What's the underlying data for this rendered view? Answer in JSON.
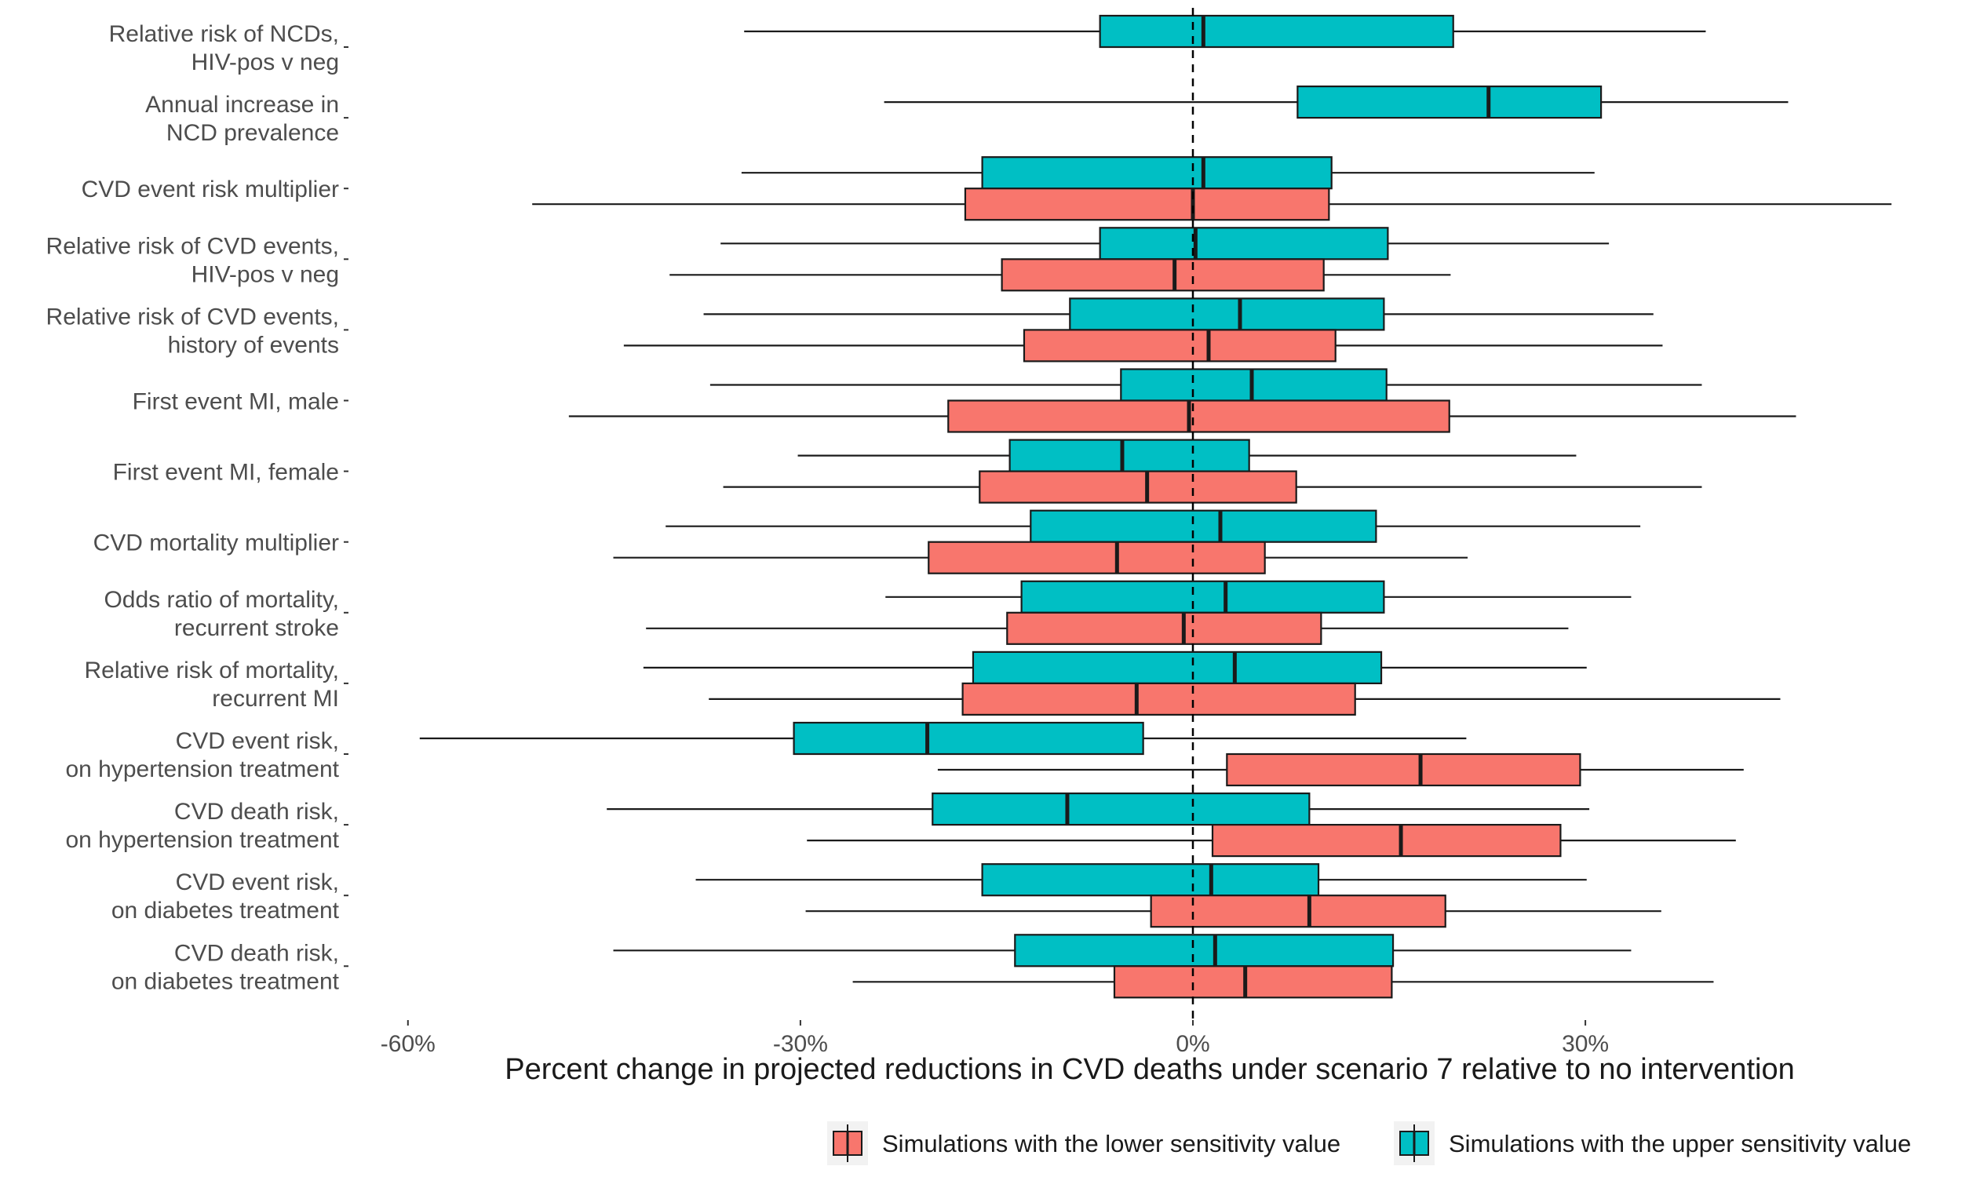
{
  "chart_data": {
    "type": "boxplot",
    "orientation": "horizontal",
    "xlabel": "Percent change in projected reductions in CVD deaths under scenario 7 relative to no intervention",
    "xlim": [
      -66,
      57
    ],
    "xticks": [
      -60,
      -30,
      0,
      30
    ],
    "xtick_labels": [
      "-60%",
      "-30%",
      "0%",
      "30%"
    ],
    "reference_line": 0,
    "grid": false,
    "legend_position": "bottom-right",
    "series": [
      {
        "key": "lower",
        "name": "Simulations with the lower sensitivity value",
        "color": "#F8766D"
      },
      {
        "key": "upper",
        "name": "Simulations with the upper sensitivity value",
        "color": "#00BFC4"
      }
    ],
    "categories": [
      {
        "label": [
          "Relative risk of NCDs,",
          "HIV-pos v neg"
        ],
        "upper": {
          "min": -34.3,
          "q1": -7.1,
          "median": 0.8,
          "q3": 19.9,
          "max": 39.2
        }
      },
      {
        "label": [
          "Annual increase in",
          "NCD prevalence"
        ],
        "upper": {
          "min": -23.6,
          "q1": 8.0,
          "median": 22.6,
          "q3": 31.2,
          "max": 45.5
        }
      },
      {
        "label": [
          "CVD event risk multiplier"
        ],
        "upper": {
          "min": -34.5,
          "q1": -16.1,
          "median": 0.8,
          "q3": 10.6,
          "max": 30.7
        },
        "lower": {
          "min": -50.5,
          "q1": -17.4,
          "median": 0.0,
          "q3": 10.4,
          "max": 53.4
        }
      },
      {
        "label": [
          "Relative risk of CVD events,",
          "HIV-pos v neg"
        ],
        "upper": {
          "min": -36.1,
          "q1": -7.1,
          "median": 0.2,
          "q3": 14.9,
          "max": 31.8
        },
        "lower": {
          "min": -40.0,
          "q1": -14.6,
          "median": -1.4,
          "q3": 10.0,
          "max": 19.7
        }
      },
      {
        "label": [
          "Relative risk of CVD events,",
          "history of events"
        ],
        "upper": {
          "min": -37.4,
          "q1": -9.4,
          "median": 3.6,
          "q3": 14.6,
          "max": 35.2
        },
        "lower": {
          "min": -43.5,
          "q1": -12.9,
          "median": 1.2,
          "q3": 10.9,
          "max": 35.9
        }
      },
      {
        "label": [
          "First event MI, male"
        ],
        "upper": {
          "min": -36.9,
          "q1": -5.5,
          "median": 4.5,
          "q3": 14.8,
          "max": 38.9
        },
        "lower": {
          "min": -47.7,
          "q1": -18.7,
          "median": -0.3,
          "q3": 19.6,
          "max": 46.1
        }
      },
      {
        "label": [
          "First event MI, female"
        ],
        "upper": {
          "min": -30.2,
          "q1": -14.0,
          "median": -5.4,
          "q3": 4.3,
          "max": 29.3
        },
        "lower": {
          "min": -35.9,
          "q1": -16.3,
          "median": -3.5,
          "q3": 7.9,
          "max": 38.9
        }
      },
      {
        "label": [
          "CVD mortality multiplier"
        ],
        "upper": {
          "min": -40.3,
          "q1": -12.4,
          "median": 2.1,
          "q3": 14.0,
          "max": 34.2
        },
        "lower": {
          "min": -44.3,
          "q1": -20.2,
          "median": -5.8,
          "q3": 5.5,
          "max": 21.0
        }
      },
      {
        "label": [
          "Odds ratio of mortality,",
          "recurrent stroke"
        ],
        "upper": {
          "min": -23.5,
          "q1": -13.1,
          "median": 2.5,
          "q3": 14.6,
          "max": 33.5
        },
        "lower": {
          "min": -41.8,
          "q1": -14.2,
          "median": -0.7,
          "q3": 9.8,
          "max": 28.7
        }
      },
      {
        "label": [
          "Relative risk of mortality,",
          "recurrent MI"
        ],
        "upper": {
          "min": -42.0,
          "q1": -16.8,
          "median": 3.2,
          "q3": 14.4,
          "max": 30.1
        },
        "lower": {
          "min": -37.0,
          "q1": -17.6,
          "median": -4.3,
          "q3": 12.4,
          "max": 44.9
        }
      },
      {
        "label": [
          "CVD event risk,",
          "on hypertension treatment"
        ],
        "upper": {
          "min": -59.1,
          "q1": -30.5,
          "median": -20.3,
          "q3": -3.8,
          "max": 20.9
        },
        "lower": {
          "min": -19.5,
          "q1": 2.6,
          "median": 17.4,
          "q3": 29.6,
          "max": 42.1
        }
      },
      {
        "label": [
          "CVD death risk,",
          "on hypertension treatment"
        ],
        "upper": {
          "min": -44.8,
          "q1": -19.9,
          "median": -9.6,
          "q3": 8.9,
          "max": 30.3
        },
        "lower": {
          "min": -29.5,
          "q1": 1.5,
          "median": 15.9,
          "q3": 28.1,
          "max": 41.5
        }
      },
      {
        "label": [
          "CVD event risk,",
          "on diabetes treatment"
        ],
        "upper": {
          "min": -38.0,
          "q1": -16.1,
          "median": 1.4,
          "q3": 9.6,
          "max": 30.1
        },
        "lower": {
          "min": -29.6,
          "q1": -3.2,
          "median": 8.9,
          "q3": 19.3,
          "max": 35.8
        }
      },
      {
        "label": [
          "CVD death risk,",
          "on diabetes treatment"
        ],
        "upper": {
          "min": -44.3,
          "q1": -13.6,
          "median": 1.7,
          "q3": 15.3,
          "max": 33.5
        },
        "lower": {
          "min": -26.0,
          "q1": -6.0,
          "median": 4.0,
          "q3": 15.2,
          "max": 39.8
        }
      }
    ]
  }
}
